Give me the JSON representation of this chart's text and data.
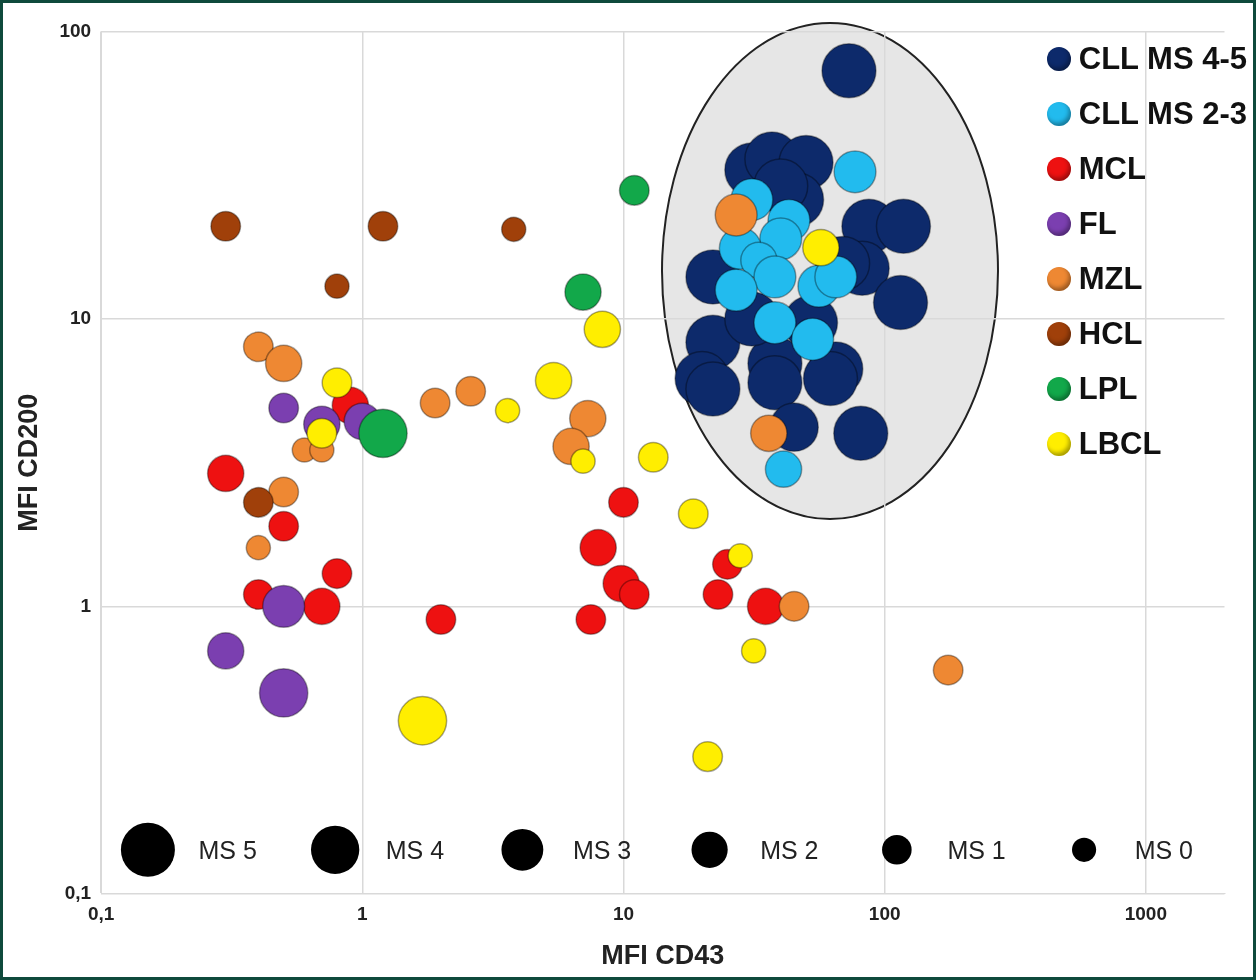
{
  "chart_data": {
    "type": "bubble",
    "xlabel": "MFI CD43",
    "ylabel": "MFI CD200",
    "log": "xy",
    "xlim": [
      0.1,
      2000
    ],
    "ylim": [
      0.1,
      100
    ],
    "xticks": [
      {
        "value": 0.1,
        "label": "0,1"
      },
      1,
      10,
      100,
      1000
    ],
    "yticks": [
      {
        "value": 0.1,
        "label": "0,1"
      },
      1,
      10,
      100
    ],
    "grid": true,
    "legend": "top right",
    "size_legend": [
      {
        "value": 1,
        "label": "MS 5"
      },
      {
        "value": 0.8,
        "label": "MS 4"
      },
      {
        "value": 0.6,
        "label": "MS 3"
      },
      {
        "value": 0.45,
        "label": "MS 2"
      },
      {
        "value": 0.3,
        "label": "MS 1"
      },
      {
        "value": 0.2,
        "label": "MS 0"
      }
    ],
    "series": [
      {
        "name": "CLL MS 4-5",
        "color": "#0d2a6b",
        "x": [
          73,
          31,
          37,
          50,
          46,
          87,
          118,
          22,
          82,
          115,
          22,
          20,
          22,
          38,
          38,
          65,
          62,
          52,
          69,
          45,
          81,
          31,
          40
        ],
        "values": [
          73,
          33,
          36,
          35,
          26,
          21,
          21,
          14,
          15,
          11.4,
          8.3,
          6.2,
          5.7,
          7,
          6,
          6.7,
          6.2,
          9.7,
          15.6,
          4.2,
          4,
          10,
          29
        ],
        "sizes": [
          1,
          1,
          1,
          1,
          1,
          1,
          1,
          1,
          1,
          1,
          1,
          1,
          1,
          1,
          1,
          1,
          1,
          1,
          1,
          0.8,
          1,
          1,
          1
        ]
      },
      {
        "name": "CLL MS 2-3",
        "color": "#22bbee",
        "x": [
          77,
          31,
          43,
          40,
          28,
          33,
          38,
          27,
          56,
          65,
          38,
          53,
          41
        ],
        "values": [
          32.5,
          26,
          22,
          19,
          17.6,
          16,
          14,
          12.6,
          13,
          14,
          9.7,
          8.5,
          3
        ],
        "sizes": [
          0.6,
          0.6,
          0.6,
          0.6,
          0.6,
          0.45,
          0.6,
          0.6,
          0.6,
          0.6,
          0.6,
          0.6,
          0.45
        ]
      },
      {
        "name": "MCL",
        "color": "#ee1111",
        "x": [
          0.9,
          0.3,
          0.5,
          0.4,
          0.8,
          0.7,
          2,
          10,
          8,
          9.8,
          11,
          7.5,
          25,
          23,
          35
        ],
        "values": [
          5,
          2.9,
          1.9,
          1.1,
          1.3,
          1,
          0.9,
          2.3,
          1.6,
          1.2,
          1.1,
          0.9,
          1.4,
          1.1,
          1
        ],
        "sizes": [
          0.45,
          0.45,
          0.3,
          0.3,
          0.3,
          0.45,
          0.3,
          0.3,
          0.45,
          0.45,
          0.3,
          0.3,
          0.3,
          0.3,
          0.45
        ]
      },
      {
        "name": "FL",
        "color": "#7b3fb0",
        "x": [
          0.5,
          0.7,
          1.0,
          0.5,
          0.3,
          0.5
        ],
        "values": [
          4.9,
          4.3,
          4.4,
          1,
          0.7,
          0.5
        ],
        "sizes": [
          0.3,
          0.45,
          0.45,
          0.6,
          0.45,
          0.8
        ]
      },
      {
        "name": "MZL",
        "color": "#ee8833",
        "x": [
          0.4,
          0.5,
          0.6,
          0.7,
          0.5,
          0.4,
          1.9,
          2.6,
          7.3,
          6.3,
          36,
          45,
          175,
          27
        ],
        "values": [
          8,
          7,
          3.5,
          3.5,
          2.5,
          1.6,
          5.1,
          5.6,
          4.5,
          3.6,
          4,
          1,
          0.6,
          23
        ],
        "sizes": [
          0.3,
          0.45,
          0.2,
          0.2,
          0.3,
          0.2,
          0.3,
          0.3,
          0.45,
          0.45,
          0.45,
          0.3,
          0.3,
          0.6
        ]
      },
      {
        "name": "HCL",
        "color": "#a0400a",
        "x": [
          0.3,
          1.2,
          3.8,
          0.8,
          0.4
        ],
        "values": [
          21,
          21,
          20.5,
          13,
          2.3
        ],
        "sizes": [
          0.3,
          0.3,
          0.2,
          0.2,
          0.3
        ]
      },
      {
        "name": "LPL",
        "color": "#12a84a",
        "x": [
          11,
          7,
          1.2
        ],
        "values": [
          28,
          12.4,
          4
        ],
        "sizes": [
          0.3,
          0.45,
          0.8
        ]
      },
      {
        "name": "LBCL",
        "color": "#ffee00",
        "x": [
          0.8,
          0.7,
          3.6,
          5.4,
          8.3,
          7,
          13,
          18.5,
          28,
          31.5,
          21,
          1.7,
          57
        ],
        "values": [
          6,
          4,
          4.8,
          6.1,
          9.2,
          3.2,
          3.3,
          2.1,
          1.5,
          0.7,
          0.3,
          0.4,
          17.7
        ],
        "sizes": [
          0.3,
          0.3,
          0.2,
          0.45,
          0.45,
          0.2,
          0.3,
          0.3,
          0.2,
          0.2,
          0.3,
          0.8,
          0.45
        ]
      }
    ]
  }
}
